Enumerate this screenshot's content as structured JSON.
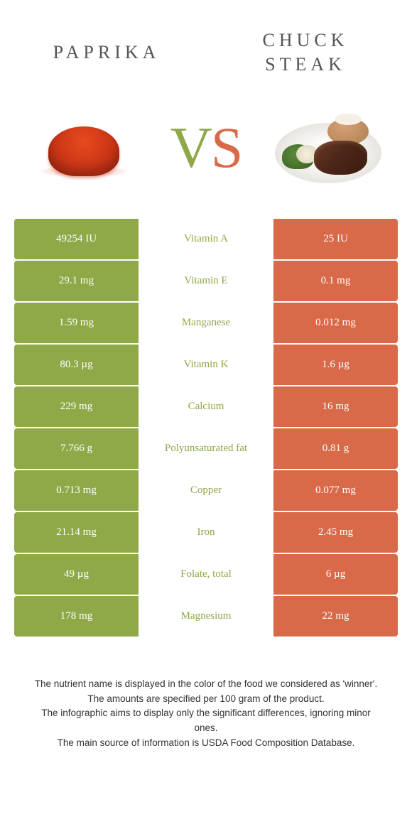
{
  "header": {
    "left_title": "Paprika",
    "right_title": "Chuck steak"
  },
  "vs": {
    "v": "V",
    "s": "S"
  },
  "colors": {
    "green": "#8fa848",
    "orange": "#d86a4a",
    "label_text": "#8fa848",
    "cell_text": "#ffffff",
    "background": "#ffffff"
  },
  "table": {
    "rows": [
      {
        "left": "49254 IU",
        "label": "Vitamin A",
        "right": "25 IU"
      },
      {
        "left": "29.1 mg",
        "label": "Vitamin E",
        "right": "0.1 mg"
      },
      {
        "left": "1.59 mg",
        "label": "Manganese",
        "right": "0.012 mg"
      },
      {
        "left": "80.3 µg",
        "label": "Vitamin K",
        "right": "1.6 µg"
      },
      {
        "left": "229 mg",
        "label": "Calcium",
        "right": "16 mg"
      },
      {
        "left": "7.766 g",
        "label": "Polyunsaturated fat",
        "right": "0.81 g"
      },
      {
        "left": "0.713 mg",
        "label": "Copper",
        "right": "0.077 mg"
      },
      {
        "left": "21.14 mg",
        "label": "Iron",
        "right": "2.45 mg"
      },
      {
        "left": "49 µg",
        "label": "Folate, total",
        "right": "6 µg"
      },
      {
        "left": "178 mg",
        "label": "Magnesium",
        "right": "22 mg"
      }
    ]
  },
  "footer": {
    "line1": "The nutrient name is displayed in the color of the food we considered as 'winner'.",
    "line2": "The amounts are specified per 100 gram of the product.",
    "line3": "The infographic aims to display only the significant differences, ignoring minor ones.",
    "line4": "The main source of information is USDA Food Composition Database."
  }
}
